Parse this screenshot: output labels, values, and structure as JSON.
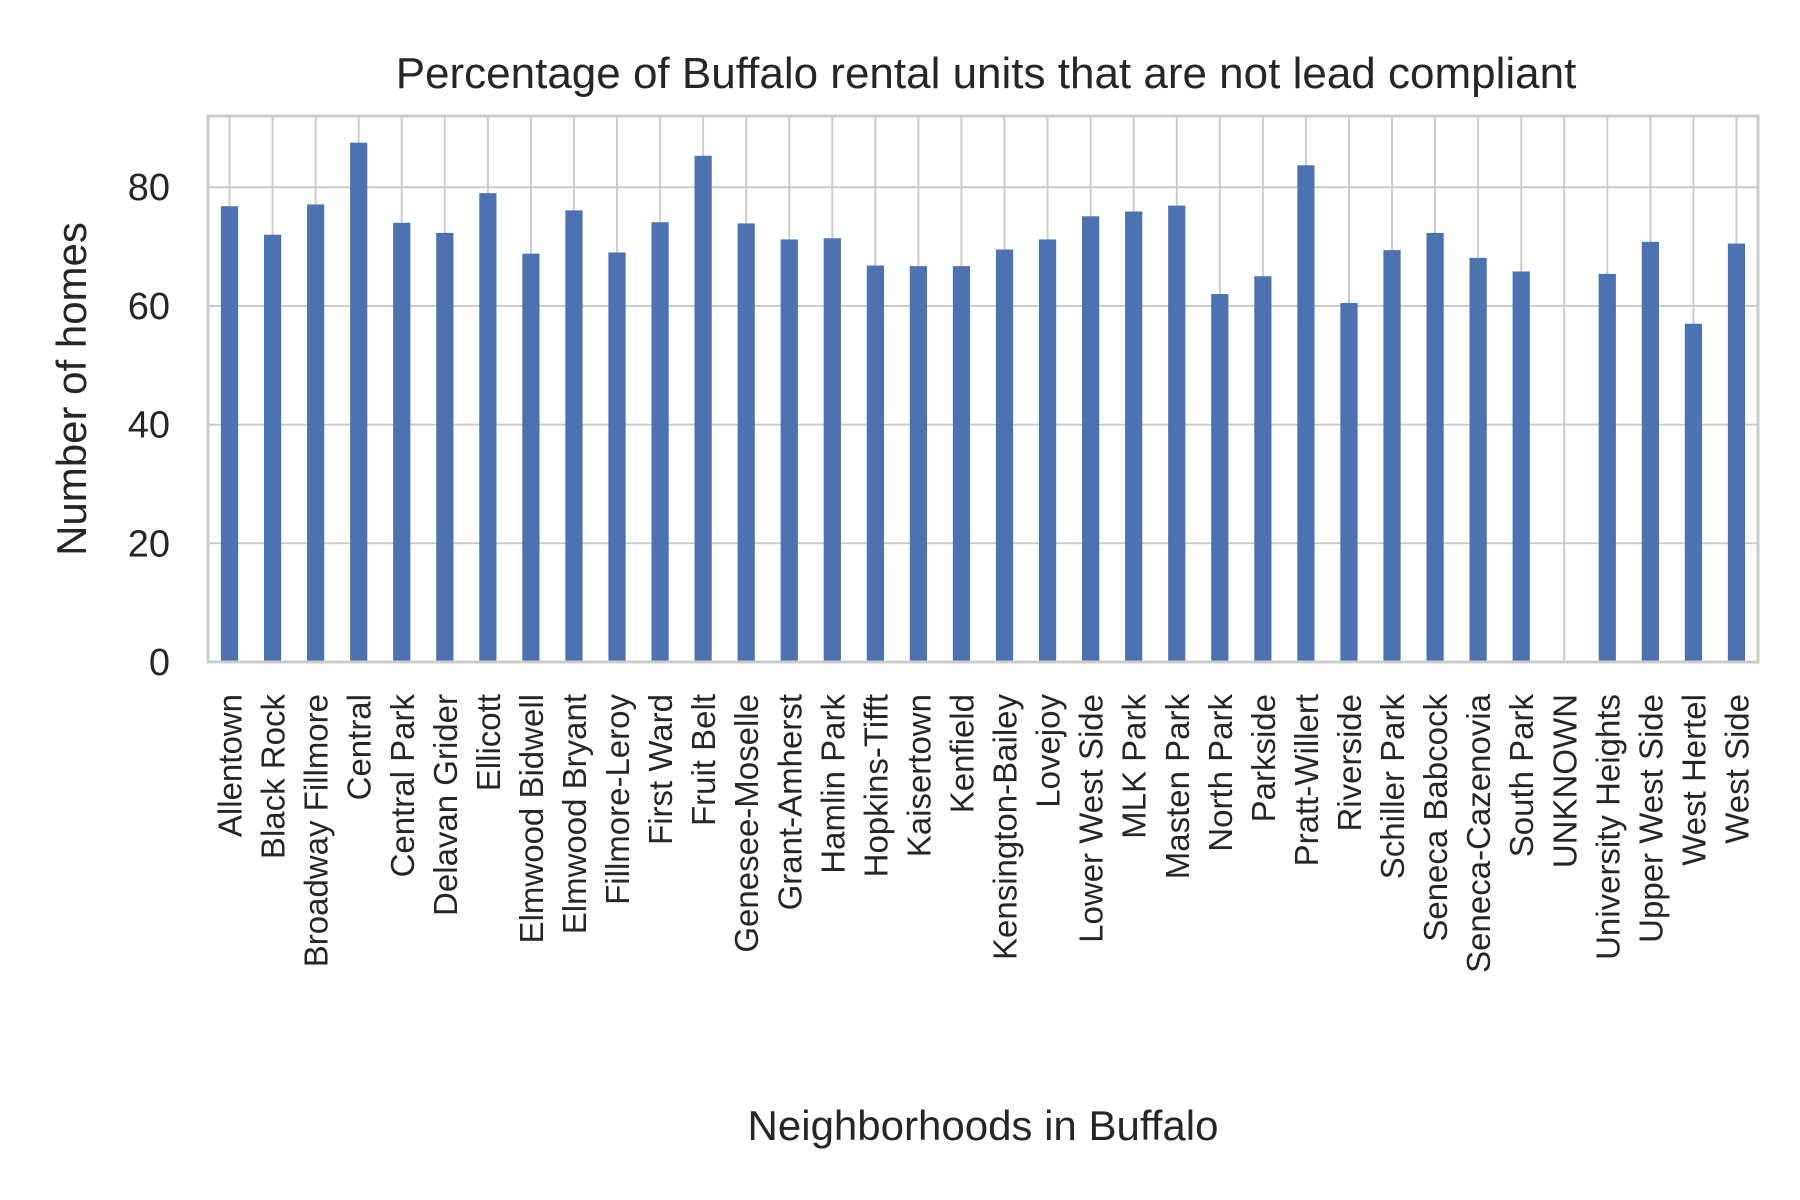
{
  "chart_data": {
    "type": "bar",
    "title": "Percentage of Buffalo rental units that are not lead compliant",
    "xlabel": "Neighborhoods in Buffalo",
    "ylabel": "Number of homes",
    "ylim": [
      0,
      92
    ],
    "yticks": [
      0,
      20,
      40,
      60,
      80
    ],
    "grid": true,
    "bar_color": "#4c72b0",
    "categories": [
      "Allentown",
      "Black Rock",
      "Broadway Fillmore",
      "Central",
      "Central Park",
      "Delavan Grider",
      "Ellicott",
      "Elmwood Bidwell",
      "Elmwood Bryant",
      "Fillmore-Leroy",
      "First Ward",
      "Fruit Belt",
      "Genesee-Moselle",
      "Grant-Amherst",
      "Hamlin Park",
      "Hopkins-Tifft",
      "Kaisertown",
      "Kenfield",
      "Kensington-Bailey",
      "Lovejoy",
      "Lower West Side",
      "MLK Park",
      "Masten Park",
      "North Park",
      "Parkside",
      "Pratt-Willert",
      "Riverside",
      "Schiller Park",
      "Seneca Babcock",
      "Seneca-Cazenovia",
      "South Park",
      "UNKNOWN",
      "University Heights",
      "Upper West Side",
      "West Hertel",
      "West Side"
    ],
    "values": [
      76.8,
      72.0,
      77.1,
      87.5,
      74.0,
      72.3,
      79.0,
      68.8,
      76.1,
      69.0,
      74.1,
      85.3,
      73.9,
      71.2,
      71.4,
      66.8,
      66.7,
      66.7,
      69.5,
      71.2,
      75.1,
      75.9,
      76.9,
      62.0,
      65.0,
      83.7,
      60.5,
      69.4,
      72.3,
      68.1,
      65.8,
      0,
      65.4,
      70.8,
      57.0,
      70.5
    ]
  }
}
